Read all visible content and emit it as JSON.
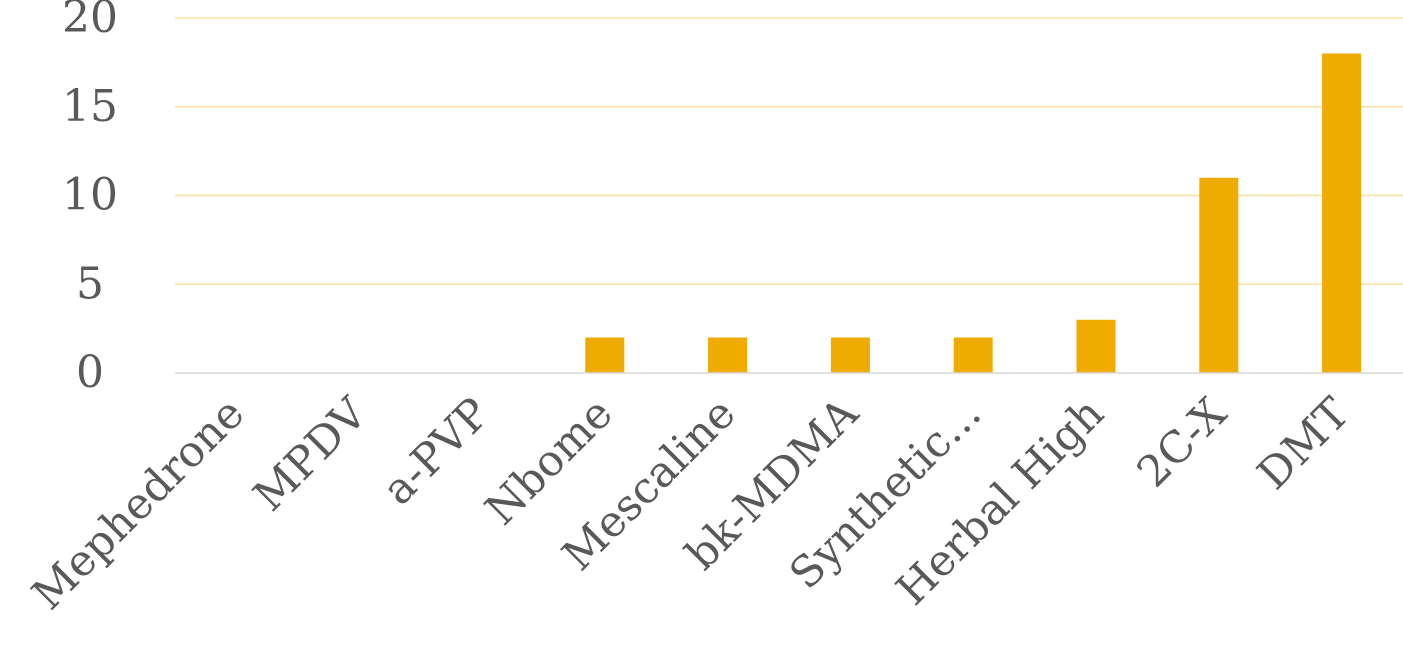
{
  "chart_data": {
    "type": "bar",
    "title": "",
    "xlabel": "",
    "ylabel": "",
    "categories": [
      "Mephedrone",
      "MPDV",
      "a-PVP",
      "Nbome",
      "Mescaline",
      "bk-MDMA",
      "Synthetic...",
      "Herbal High",
      "2C-X",
      "DMT"
    ],
    "values": [
      0,
      0,
      0,
      2,
      2,
      2,
      2,
      3,
      11,
      18
    ],
    "ylim": [
      0,
      20
    ],
    "yticks": [
      "0",
      "5",
      "10",
      "15",
      "20"
    ],
    "grid": true,
    "legend": "none",
    "colors": {
      "bar": "#F0AB00",
      "grid": "#F7E0A3",
      "axis": "#D9D9D9",
      "text": "#595959"
    }
  }
}
